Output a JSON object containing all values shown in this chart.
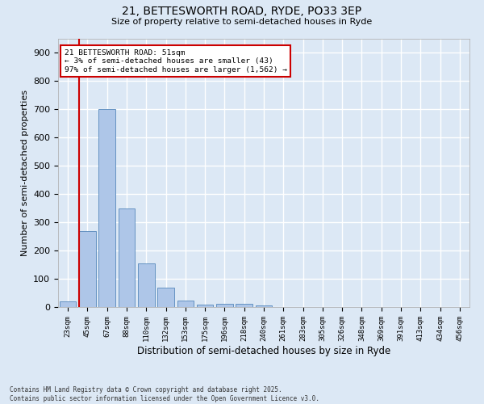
{
  "title_line1": "21, BETTESWORTH ROAD, RYDE, PO33 3EP",
  "title_line2": "Size of property relative to semi-detached houses in Ryde",
  "xlabel": "Distribution of semi-detached houses by size in Ryde",
  "ylabel": "Number of semi-detached properties",
  "categories": [
    "23sqm",
    "45sqm",
    "67sqm",
    "88sqm",
    "110sqm",
    "132sqm",
    "153sqm",
    "175sqm",
    "196sqm",
    "218sqm",
    "240sqm",
    "261sqm",
    "283sqm",
    "305sqm",
    "326sqm",
    "348sqm",
    "369sqm",
    "391sqm",
    "413sqm",
    "434sqm",
    "456sqm"
  ],
  "values": [
    20,
    270,
    700,
    350,
    155,
    70,
    22,
    10,
    12,
    12,
    7,
    0,
    0,
    0,
    0,
    0,
    0,
    0,
    0,
    0,
    0
  ],
  "bar_color": "#aec6e8",
  "bar_edge_color": "#5588bb",
  "vline_color": "#cc0000",
  "annotation_text": "21 BETTESWORTH ROAD: 51sqm\n← 3% of semi-detached houses are smaller (43)\n97% of semi-detached houses are larger (1,562) →",
  "annotation_box_color": "#ffffff",
  "annotation_box_edge": "#cc0000",
  "ylim": [
    0,
    950
  ],
  "yticks": [
    0,
    100,
    200,
    300,
    400,
    500,
    600,
    700,
    800,
    900
  ],
  "background_color": "#dce8f5",
  "grid_color": "#ffffff",
  "footer_line1": "Contains HM Land Registry data © Crown copyright and database right 2025.",
  "footer_line2": "Contains public sector information licensed under the Open Government Licence v3.0."
}
